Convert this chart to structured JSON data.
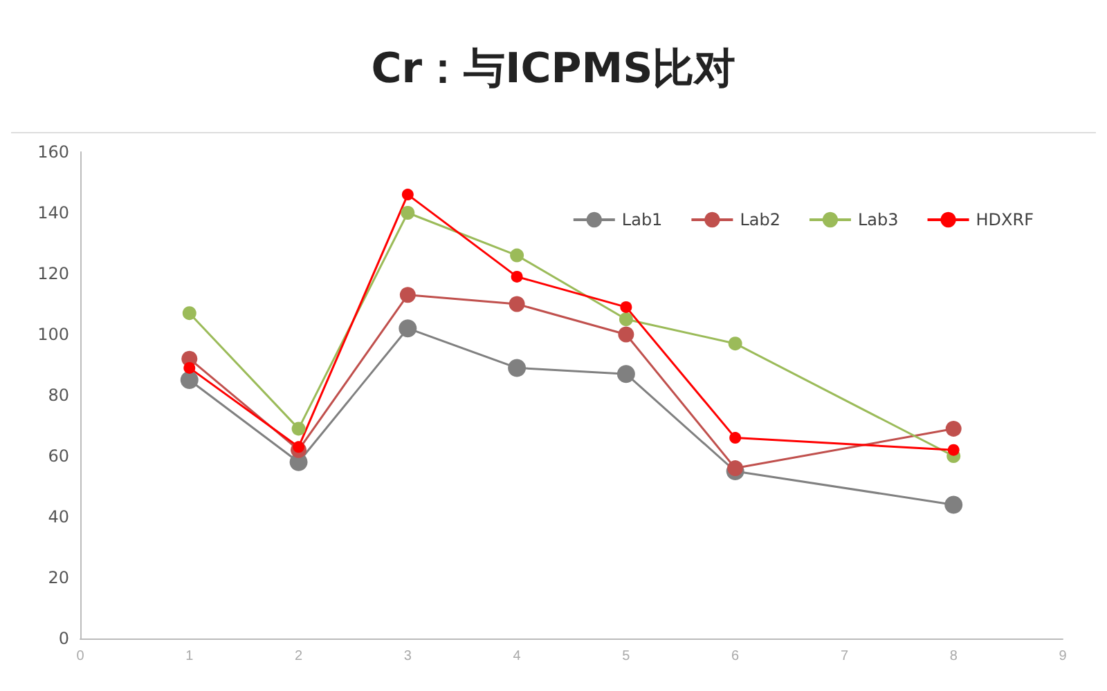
{
  "chart_data": {
    "type": "line",
    "title": "Cr：与ICPMS比对",
    "x": [
      1,
      2,
      3,
      4,
      5,
      6,
      8
    ],
    "series": [
      {
        "name": "Lab1",
        "color": "#808080",
        "values": [
          85,
          58,
          102,
          89,
          87,
          55,
          44
        ]
      },
      {
        "name": "Lab2",
        "color": "#c0504d",
        "values": [
          92,
          62,
          113,
          110,
          100,
          56,
          69
        ]
      },
      {
        "name": "Lab3",
        "color": "#9bbb59",
        "values": [
          107,
          69,
          140,
          126,
          105,
          97,
          60
        ]
      },
      {
        "name": "HDXRF",
        "color": "#ff0000",
        "values": [
          89,
          63,
          146,
          119,
          109,
          66,
          62
        ]
      }
    ],
    "xlim": [
      0,
      9
    ],
    "xticks": [
      0,
      1,
      2,
      3,
      4,
      5,
      6,
      7,
      8,
      9
    ],
    "ylim": [
      0,
      160
    ],
    "yticks": [
      0,
      20,
      40,
      60,
      80,
      100,
      120,
      140,
      160
    ],
    "grid": false,
    "legend": "top right",
    "marker": "circle"
  }
}
